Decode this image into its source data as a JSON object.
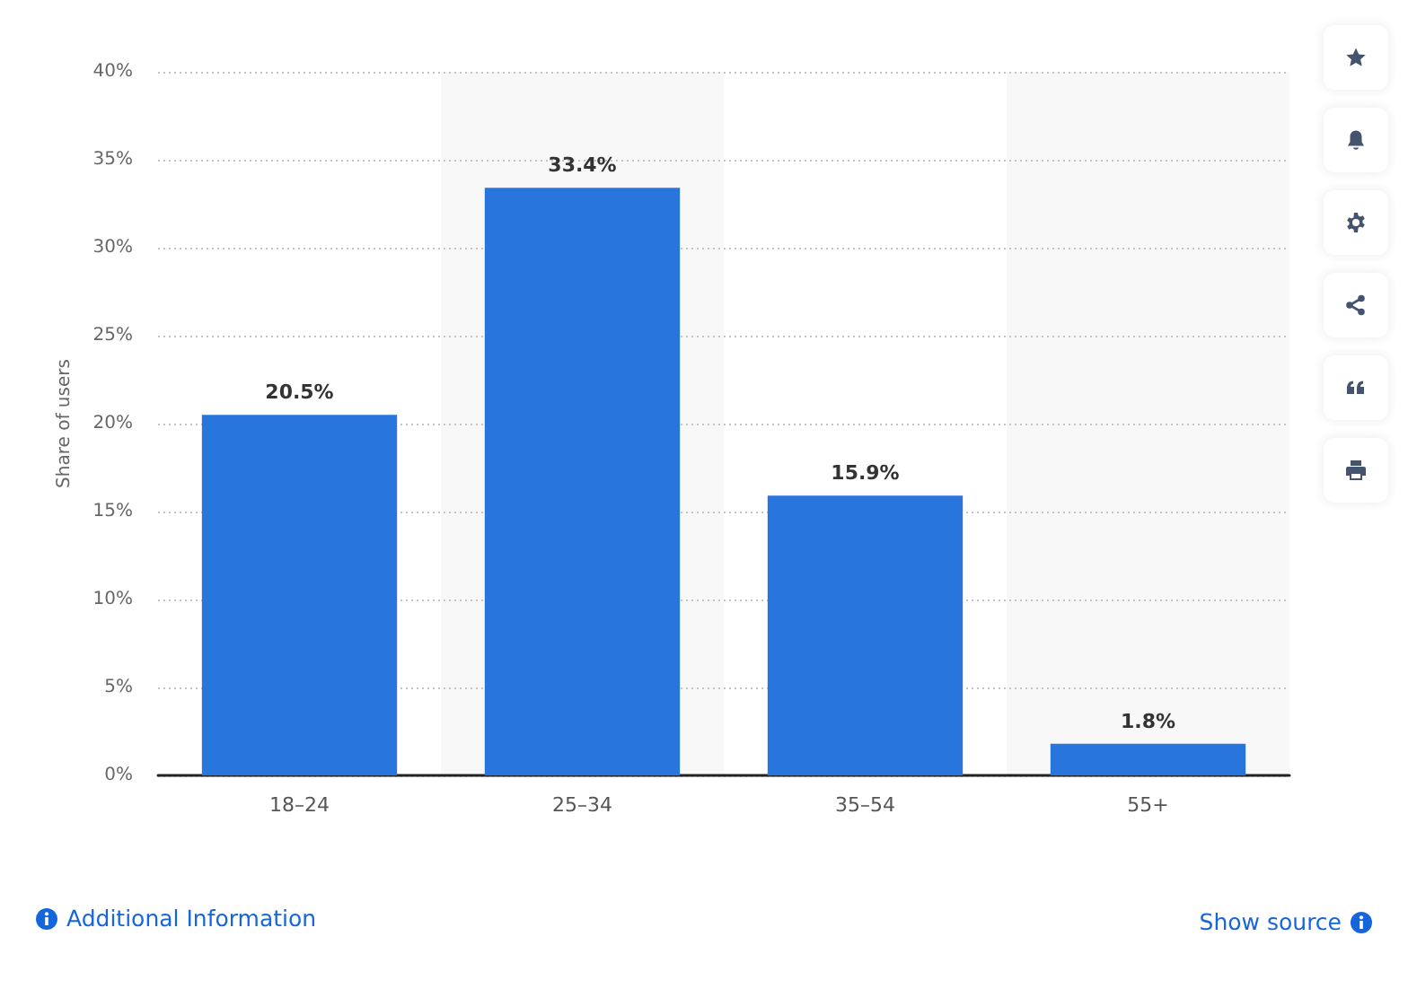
{
  "chart_data": {
    "type": "bar",
    "categories": [
      "18–24",
      "25–34",
      "35–54",
      "55+"
    ],
    "values": [
      20.5,
      33.4,
      15.9,
      1.8
    ],
    "color": "#2876dd",
    "value_labels": [
      "20.5%",
      "33.4%",
      "15.9%",
      "1.8%"
    ],
    "ylabel": "Share of users",
    "ylim": [
      0,
      40
    ],
    "yticks": [
      {
        "value": 0,
        "label": "0%"
      },
      {
        "value": 5,
        "label": "5%"
      },
      {
        "value": 10,
        "label": "10%"
      },
      {
        "value": 15,
        "label": "15%"
      },
      {
        "value": 20,
        "label": "20%"
      },
      {
        "value": 25,
        "label": "25%"
      },
      {
        "value": 30,
        "label": "30%"
      },
      {
        "value": 35,
        "label": "35%"
      },
      {
        "value": 40,
        "label": "40%"
      }
    ],
    "grid": "y",
    "bands": [
      {
        "axis": "x",
        "from": "25–34",
        "to": "25–34",
        "color": "#f8f8f8"
      },
      {
        "axis": "x",
        "from": "55+",
        "to": "55+",
        "color": "#f8f8f8"
      }
    ],
    "annotations": [
      "Additional Information",
      "Show source"
    ]
  }
}
